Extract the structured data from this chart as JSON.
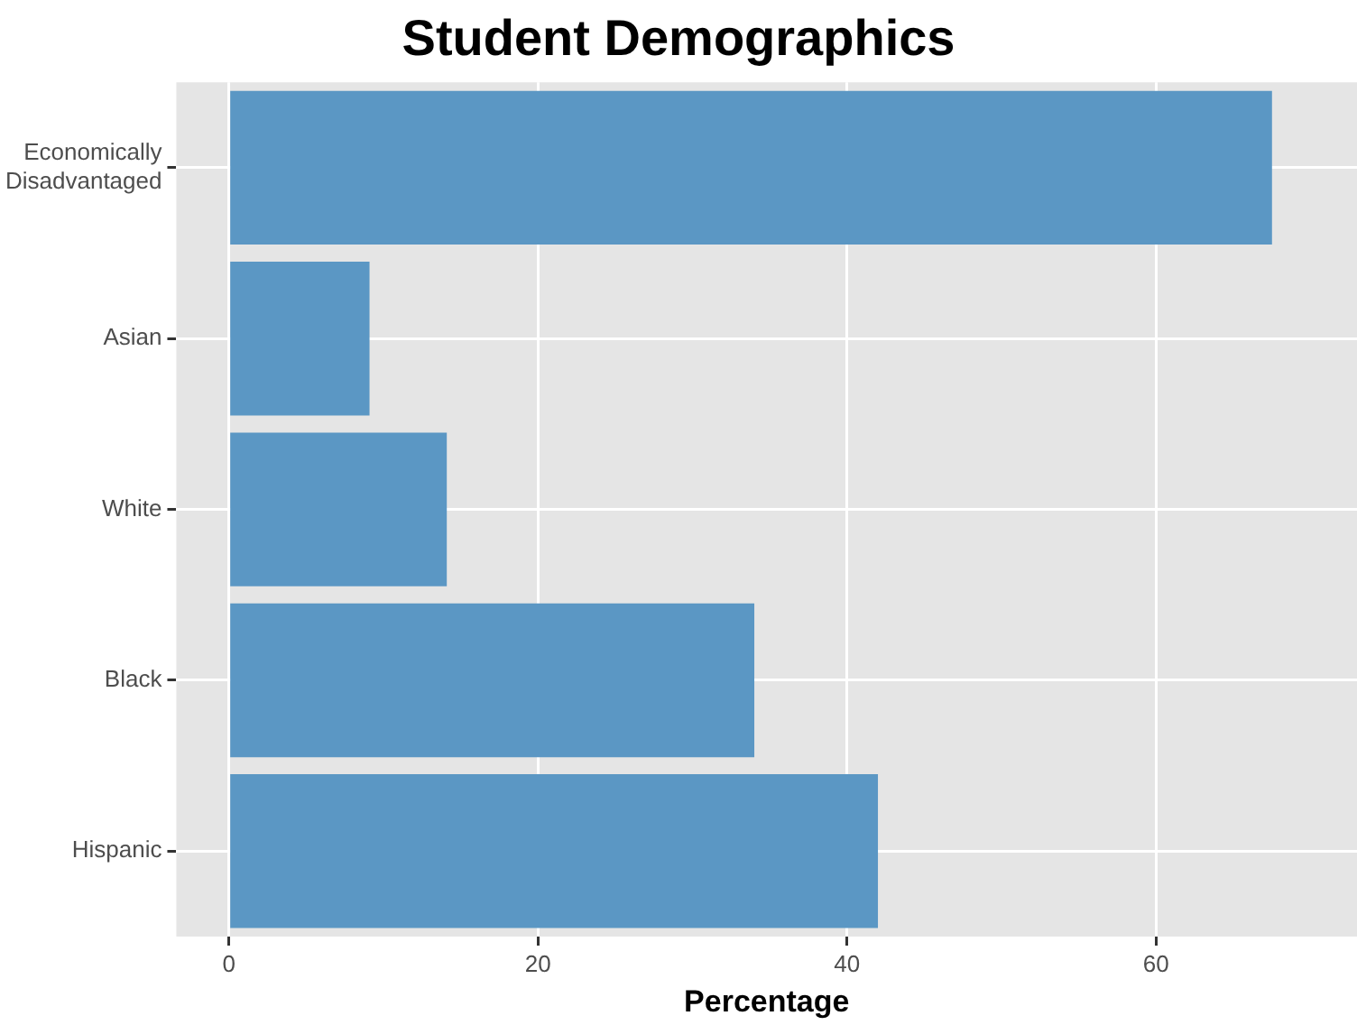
{
  "chart_data": {
    "type": "bar",
    "title": "Student Demographics",
    "xlabel": "Percentage",
    "orientation": "horizontal",
    "categories": [
      "Economically\nDisadvantaged",
      "Asian",
      "White",
      "Black",
      "Hispanic"
    ],
    "values": [
      67.5,
      9.1,
      14.1,
      34.0,
      42.0
    ],
    "color": "#5b97c4",
    "xlim": [
      -3.4,
      73
    ],
    "xticks": [
      0,
      20,
      40,
      60
    ],
    "grid": true
  }
}
